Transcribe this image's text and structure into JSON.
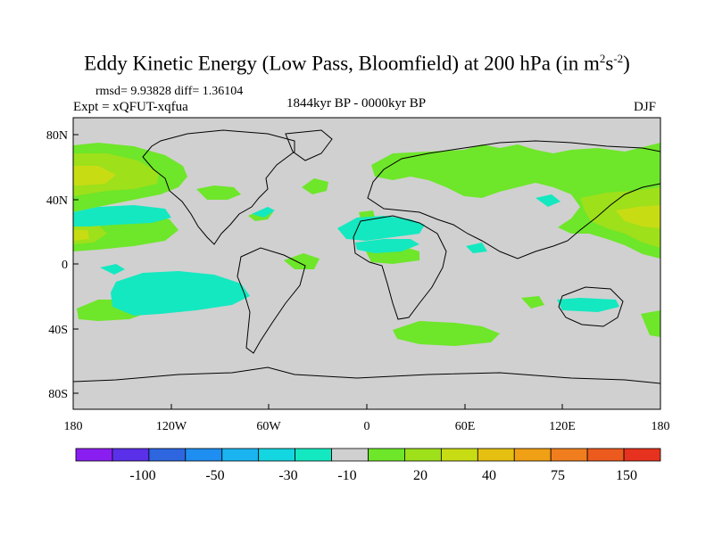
{
  "chart_data": {
    "type": "heatmap",
    "title": {
      "main": "Eddy Kinetic Energy (Low Pass, Bloomfield) at 200 hPa (in m",
      "sup1": "2",
      "mid": "s",
      "sup2": "-2",
      "end": ")"
    },
    "stats": "rmsd= 9.93828  diff= 1.36104",
    "experiment": "Expt = xQFUT-xqfua",
    "period": "1844kyr BP - 0000kyr BP",
    "season": "DJF",
    "x_ticks": [
      "180",
      "120W",
      "60W",
      "0",
      "60E",
      "120E",
      "180"
    ],
    "y_ticks": [
      "80N",
      "40N",
      "0",
      "40S",
      "80S"
    ],
    "xlim": [
      -180,
      180
    ],
    "ylim": [
      -90,
      90
    ],
    "colorbar": {
      "colors": [
        "#8a1ef0",
        "#5a30e8",
        "#2e66e0",
        "#1e8ef0",
        "#1ab4f0",
        "#14d6e0",
        "#14e8c0",
        "#d0d0d0",
        "#6ee62a",
        "#9ee01a",
        "#c8dc14",
        "#e6c010",
        "#f0a014",
        "#f07e1e",
        "#ec5a1e",
        "#e6321e"
      ],
      "labels": [
        "-100",
        "-50",
        "-30",
        "-10",
        "20",
        "40",
        "75",
        "150"
      ]
    },
    "regions": [
      {
        "level": "pos_low",
        "color": "#6ee62a",
        "desc": "North Pacific jet band"
      },
      {
        "level": "pos_mid",
        "color": "#9ee01a",
        "desc": "West Pacific / Japan"
      },
      {
        "level": "pos_high",
        "color": "#c8dc14",
        "desc": "Dateline maxima"
      },
      {
        "level": "neg_low",
        "color": "#14e8c0",
        "desc": "Subtropical Atlantic / Pacific"
      },
      {
        "level": "pos_low",
        "color": "#6ee62a",
        "desc": "Eurasia band"
      }
    ]
  }
}
